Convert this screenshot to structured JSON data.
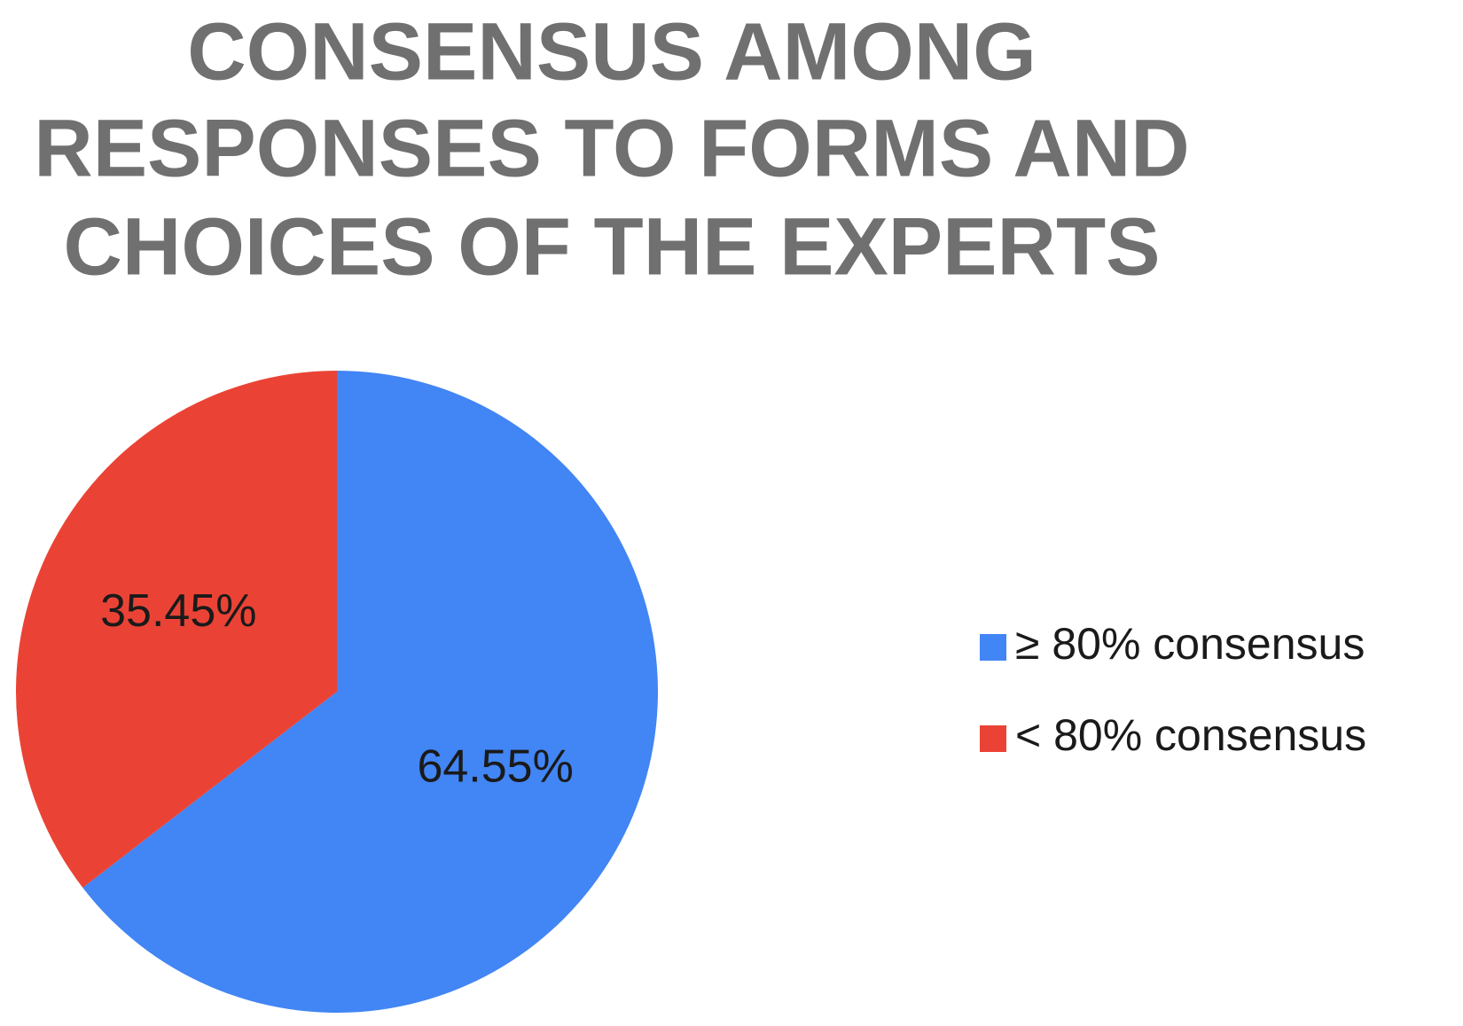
{
  "chart_data": {
    "type": "pie",
    "title": [
      "CONSENSUS AMONG",
      "RESPONSES TO FORMS AND",
      "CHOICES OF THE EXPERTS"
    ],
    "categories": [
      "≥ 80% consensus",
      "< 80% consensus"
    ],
    "values": [
      64.55,
      35.45
    ],
    "value_labels": [
      "64.55%",
      "35.45%"
    ],
    "colors": [
      "#4285f4",
      "#ea4335"
    ],
    "legend": "right"
  }
}
